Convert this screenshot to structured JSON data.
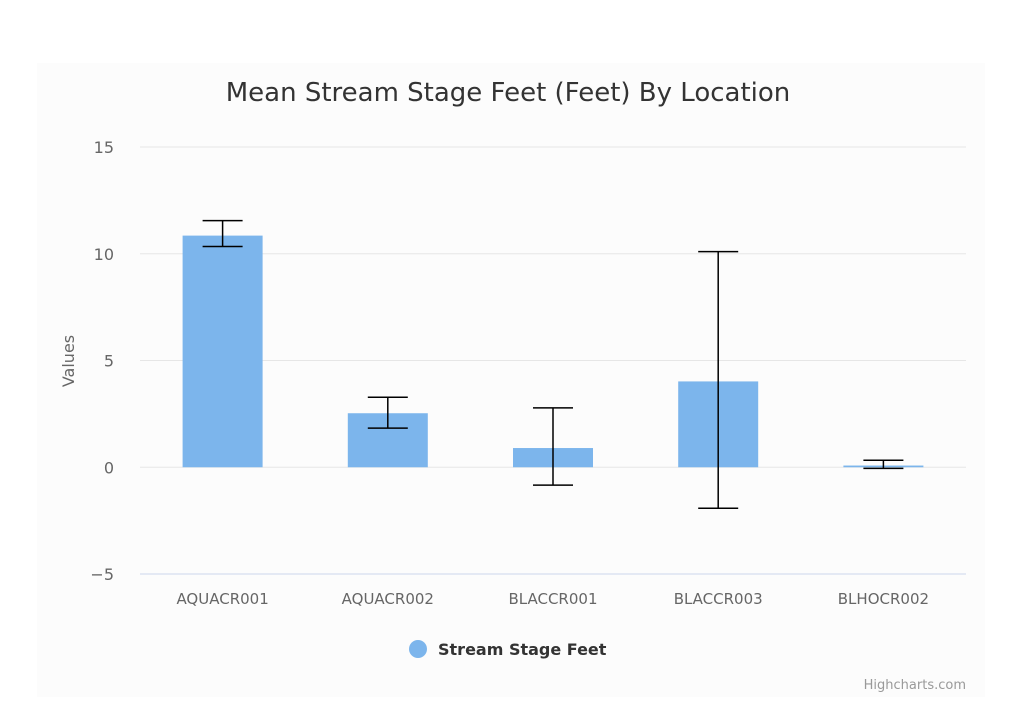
{
  "chart_data": {
    "type": "bar",
    "title": "Mean Stream Stage Feet (Feet) By Location",
    "xlabel": "",
    "ylabel": "Values",
    "ylim": [
      -5,
      15
    ],
    "yticks": [
      -5,
      0,
      5,
      10,
      15
    ],
    "ytick_labels": [
      "−5",
      "0",
      "5",
      "10",
      "15"
    ],
    "grid": true,
    "categories": [
      "AQUACR001",
      "AQUACR002",
      "BLACCR001",
      "BLACCR003",
      "BLHOCR002"
    ],
    "series": [
      {
        "name": "Stream Stage Feet",
        "color": "#7cb5ec",
        "values": [
          10.85,
          2.53,
          0.9,
          4.02,
          0.08
        ],
        "error_low": [
          10.34,
          1.83,
          -0.84,
          -1.92,
          -0.05
        ],
        "error_high": [
          11.55,
          3.28,
          2.78,
          10.1,
          0.33
        ]
      }
    ],
    "legend": "bottom-center",
    "credits": "Highcharts.com"
  }
}
